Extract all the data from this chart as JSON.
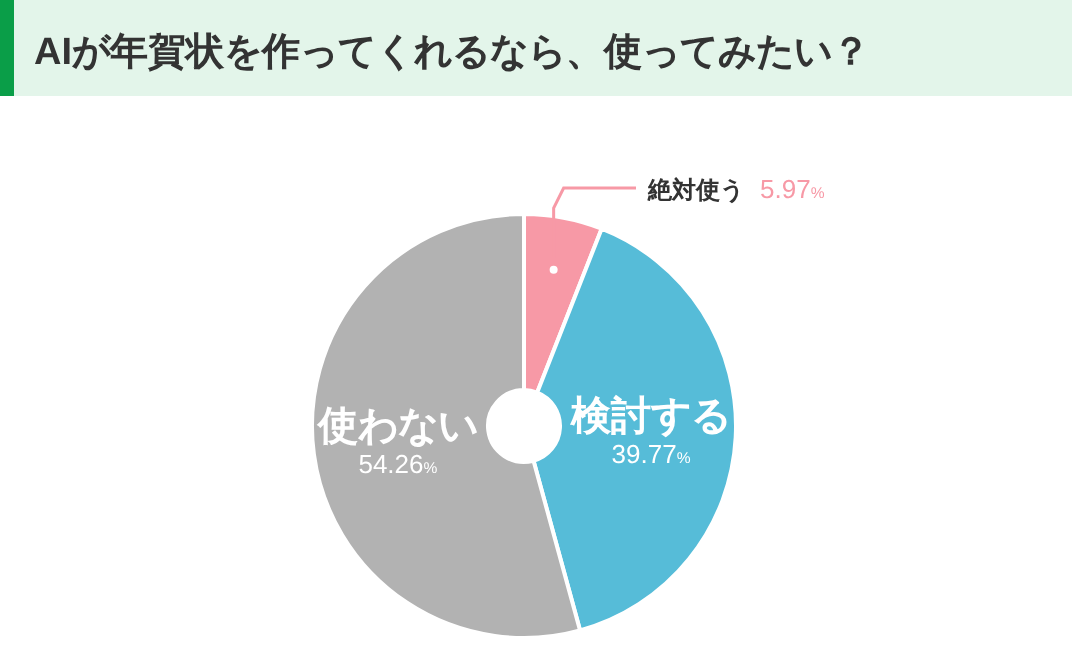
{
  "chart_data": {
    "type": "donut",
    "title": "AIが年賀状を作ってくれるなら、使ってみたい？",
    "categories": [
      "絶対使う",
      "検討する",
      "使わない"
    ],
    "values": [
      5.97,
      39.77,
      54.26
    ],
    "colors": [
      "#f799a6",
      "#56bcd8",
      "#b2b2b2"
    ],
    "value_labels": [
      "5.97%",
      "39.77%",
      "54.26%"
    ]
  }
}
